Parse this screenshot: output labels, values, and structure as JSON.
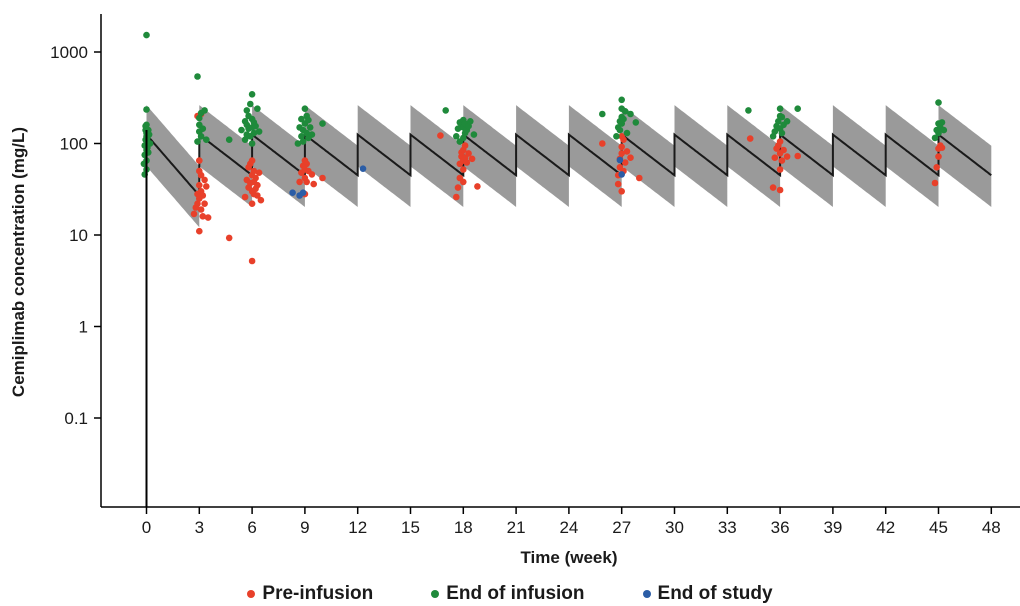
{
  "chart_data": {
    "type": "scatter",
    "xlabel": "Time (week)",
    "ylabel": "Cemiplimab concentration (mg/L)",
    "xlim": [
      -3.2,
      49.5
    ],
    "ylim": [
      0.01,
      3000
    ],
    "yscale": "log",
    "xticks": [
      0,
      3,
      6,
      9,
      12,
      15,
      18,
      21,
      24,
      27,
      30,
      33,
      36,
      39,
      42,
      45,
      48
    ],
    "yticks": [
      0.1,
      1,
      10,
      100,
      1000
    ],
    "ytick_labels": [
      "0.1",
      "1",
      "10",
      "100",
      "1000"
    ],
    "grid": false,
    "legend_position": "bottom",
    "model_prediction": {
      "dose_interval_weeks": 3,
      "last_dose_week": 45,
      "end_week": 48,
      "median_peak": 125,
      "median_trough": 45,
      "peak_first_dose": 125,
      "trough_first_dose": 27,
      "interval_low_factor": 0.45,
      "interval_high_factor": 2.1,
      "line_color": "#1a1a1a",
      "band_color": "#9a9a9a"
    },
    "series": [
      {
        "name": "Pre-infusion",
        "color": "#e8402a",
        "points": [
          [
            2.7,
            17
          ],
          [
            2.8,
            20
          ],
          [
            2.9,
            22
          ],
          [
            2.9,
            28
          ],
          [
            3.0,
            11
          ],
          [
            3.0,
            25
          ],
          [
            3.0,
            35
          ],
          [
            3.0,
            50
          ],
          [
            3.0,
            65
          ],
          [
            3.1,
            19
          ],
          [
            3.1,
            30
          ],
          [
            3.1,
            45
          ],
          [
            3.2,
            16
          ],
          [
            3.2,
            27
          ],
          [
            3.3,
            22
          ],
          [
            3.3,
            40
          ],
          [
            3.4,
            34
          ],
          [
            3.5,
            15.5
          ],
          [
            2.9,
            200
          ],
          [
            3.1,
            210
          ],
          [
            4.7,
            9.3
          ],
          [
            5.6,
            26
          ],
          [
            5.7,
            40
          ],
          [
            5.8,
            33
          ],
          [
            5.8,
            55
          ],
          [
            5.9,
            37
          ],
          [
            5.9,
            60
          ],
          [
            6.0,
            5.2
          ],
          [
            6.0,
            22
          ],
          [
            6.0,
            30
          ],
          [
            6.0,
            45
          ],
          [
            6.0,
            65
          ],
          [
            6.1,
            28
          ],
          [
            6.1,
            38
          ],
          [
            6.1,
            50
          ],
          [
            6.2,
            32
          ],
          [
            6.2,
            42
          ],
          [
            6.3,
            27
          ],
          [
            6.3,
            35
          ],
          [
            6.4,
            48
          ],
          [
            6.5,
            24
          ],
          [
            8.7,
            38
          ],
          [
            8.8,
            48
          ],
          [
            8.9,
            57
          ],
          [
            9.0,
            28
          ],
          [
            9.0,
            42
          ],
          [
            9.0,
            52
          ],
          [
            9.0,
            65
          ],
          [
            9.1,
            38
          ],
          [
            9.1,
            60
          ],
          [
            9.2,
            50
          ],
          [
            9.4,
            46
          ],
          [
            9.5,
            36
          ],
          [
            10.0,
            42
          ],
          [
            16.7,
            122
          ],
          [
            17.6,
            26
          ],
          [
            17.7,
            33
          ],
          [
            17.8,
            42
          ],
          [
            17.8,
            60
          ],
          [
            17.9,
            72
          ],
          [
            17.9,
            80
          ],
          [
            18.0,
            38
          ],
          [
            18.0,
            52
          ],
          [
            18.0,
            65
          ],
          [
            18.0,
            85
          ],
          [
            18.1,
            70
          ],
          [
            18.1,
            95
          ],
          [
            18.2,
            62
          ],
          [
            18.3,
            78
          ],
          [
            18.5,
            68
          ],
          [
            18.8,
            34
          ],
          [
            25.9,
            100
          ],
          [
            26.8,
            36
          ],
          [
            26.8,
            45
          ],
          [
            26.9,
            55
          ],
          [
            26.9,
            68
          ],
          [
            27.0,
            30
          ],
          [
            27.0,
            78
          ],
          [
            27.0,
            92
          ],
          [
            27.0,
            120
          ],
          [
            27.1,
            50
          ],
          [
            27.1,
            110
          ],
          [
            27.2,
            62
          ],
          [
            27.3,
            82
          ],
          [
            27.5,
            70
          ],
          [
            28.0,
            42
          ],
          [
            34.3,
            113
          ],
          [
            35.6,
            33
          ],
          [
            35.7,
            70
          ],
          [
            35.8,
            88
          ],
          [
            35.9,
            95
          ],
          [
            36.0,
            31
          ],
          [
            36.0,
            52
          ],
          [
            36.0,
            78
          ],
          [
            36.0,
            105
          ],
          [
            36.1,
            65
          ],
          [
            36.2,
            85
          ],
          [
            36.4,
            72
          ],
          [
            37.0,
            73
          ],
          [
            44.8,
            37
          ],
          [
            44.9,
            55
          ],
          [
            45.0,
            72
          ],
          [
            45.0,
            88
          ],
          [
            45.1,
            95
          ],
          [
            45.2,
            90
          ]
        ]
      },
      {
        "name": "End of infusion",
        "color": "#1f8a3b",
        "points": [
          [
            -0.15,
            60
          ],
          [
            -0.1,
            46
          ],
          [
            -0.1,
            75
          ],
          [
            -0.1,
            95
          ],
          [
            -0.05,
            110
          ],
          [
            -0.05,
            140
          ],
          [
            -0.05,
            155
          ],
          [
            0.0,
            52
          ],
          [
            0.0,
            65
          ],
          [
            0.0,
            85
          ],
          [
            0.0,
            100
          ],
          [
            0.0,
            120
          ],
          [
            0.0,
            130
          ],
          [
            0.0,
            160
          ],
          [
            0.0,
            235
          ],
          [
            0.0,
            1530
          ],
          [
            0.05,
            90
          ],
          [
            0.05,
            105
          ],
          [
            0.05,
            115
          ],
          [
            0.1,
            80
          ],
          [
            0.1,
            140
          ],
          [
            0.15,
            125
          ],
          [
            0.2,
            100
          ],
          [
            2.9,
            105
          ],
          [
            2.9,
            540
          ],
          [
            3.0,
            135
          ],
          [
            3.0,
            160
          ],
          [
            3.0,
            190
          ],
          [
            3.1,
            120
          ],
          [
            3.1,
            215
          ],
          [
            3.2,
            145
          ],
          [
            3.3,
            230
          ],
          [
            3.4,
            110
          ],
          [
            4.7,
            110
          ],
          [
            5.4,
            140
          ],
          [
            5.6,
            110
          ],
          [
            5.6,
            175
          ],
          [
            5.7,
            125
          ],
          [
            5.7,
            160
          ],
          [
            5.7,
            230
          ],
          [
            5.8,
            145
          ],
          [
            5.8,
            200
          ],
          [
            5.9,
            120
          ],
          [
            5.9,
            270
          ],
          [
            6.0,
            100
          ],
          [
            6.0,
            150
          ],
          [
            6.0,
            185
          ],
          [
            6.0,
            345
          ],
          [
            6.1,
            130
          ],
          [
            6.1,
            170
          ],
          [
            6.2,
            155
          ],
          [
            6.3,
            240
          ],
          [
            6.4,
            135
          ],
          [
            8.6,
            100
          ],
          [
            8.7,
            150
          ],
          [
            8.8,
            120
          ],
          [
            8.8,
            185
          ],
          [
            8.9,
            105
          ],
          [
            8.9,
            140
          ],
          [
            9.0,
            165
          ],
          [
            9.0,
            240
          ],
          [
            9.1,
            130
          ],
          [
            9.1,
            200
          ],
          [
            9.2,
            115
          ],
          [
            9.2,
            180
          ],
          [
            9.3,
            150
          ],
          [
            9.4,
            125
          ],
          [
            10.0,
            165
          ],
          [
            17.0,
            230
          ],
          [
            17.6,
            120
          ],
          [
            17.7,
            145
          ],
          [
            17.8,
            170
          ],
          [
            17.8,
            105
          ],
          [
            17.9,
            160
          ],
          [
            18.0,
            115
          ],
          [
            18.0,
            150
          ],
          [
            18.0,
            180
          ],
          [
            18.1,
            130
          ],
          [
            18.1,
            165
          ],
          [
            18.2,
            140
          ],
          [
            18.3,
            155
          ],
          [
            18.4,
            175
          ],
          [
            18.6,
            125
          ],
          [
            25.9,
            210
          ],
          [
            26.7,
            120
          ],
          [
            26.8,
            150
          ],
          [
            26.9,
            140
          ],
          [
            26.9,
            175
          ],
          [
            27.0,
            165
          ],
          [
            27.0,
            195
          ],
          [
            27.0,
            240
          ],
          [
            27.0,
            300
          ],
          [
            27.1,
            185
          ],
          [
            27.2,
            225
          ],
          [
            27.3,
            130
          ],
          [
            27.5,
            210
          ],
          [
            27.8,
            170
          ],
          [
            34.2,
            230
          ],
          [
            35.6,
            120
          ],
          [
            35.7,
            135
          ],
          [
            35.8,
            155
          ],
          [
            35.9,
            175
          ],
          [
            36.0,
            145
          ],
          [
            36.0,
            200
          ],
          [
            36.0,
            240
          ],
          [
            36.1,
            130
          ],
          [
            36.1,
            195
          ],
          [
            36.2,
            160
          ],
          [
            36.4,
            175
          ],
          [
            37.0,
            240
          ],
          [
            44.8,
            115
          ],
          [
            44.9,
            140
          ],
          [
            45.0,
            130
          ],
          [
            45.0,
            165
          ],
          [
            45.0,
            280
          ],
          [
            45.1,
            150
          ],
          [
            45.2,
            170
          ],
          [
            45.3,
            140
          ]
        ]
      },
      {
        "name": "End of study",
        "color": "#2b5da6",
        "points": [
          [
            8.3,
            29
          ],
          [
            8.7,
            27
          ],
          [
            8.9,
            29
          ],
          [
            12.3,
            53
          ],
          [
            26.9,
            66
          ],
          [
            27.0,
            46
          ]
        ]
      }
    ]
  }
}
